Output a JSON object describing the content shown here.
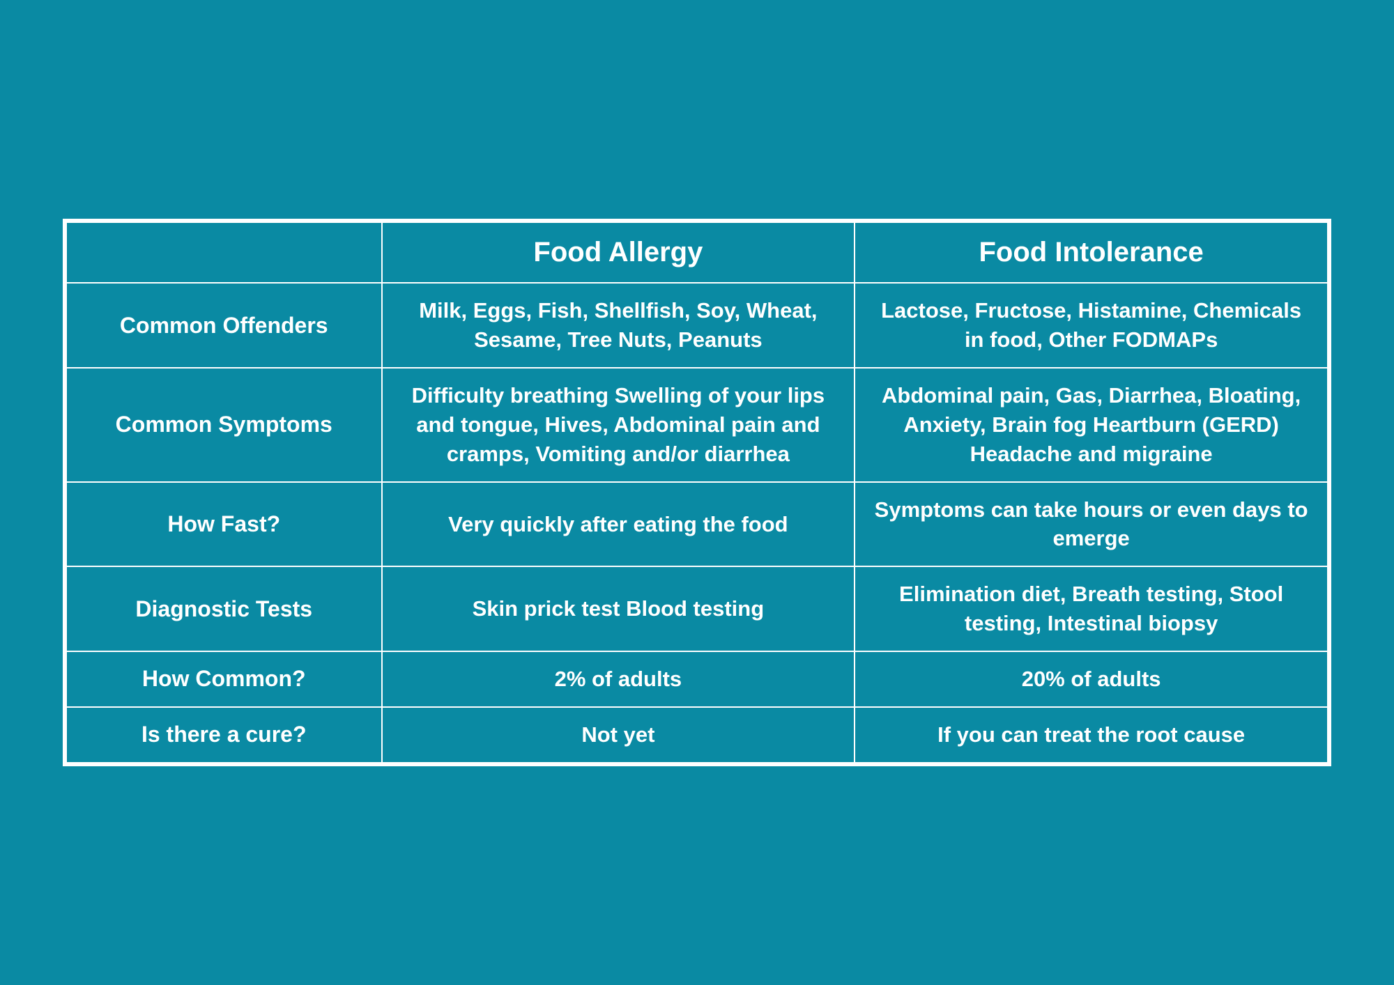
{
  "table": {
    "type": "table",
    "background_color": "#0a8aa3",
    "border_color": "#ffffff",
    "text_color": "#ffffff",
    "header_fontsize": 40,
    "label_fontsize": 32,
    "cell_fontsize": 31,
    "columns": [
      "",
      "Food Allergy",
      "Food Intolerance"
    ],
    "rows": [
      {
        "label": "Common Offenders",
        "allergy": "Milk, Eggs, Fish, Shellfish, Soy, Wheat, Sesame, Tree Nuts, Peanuts",
        "intolerance": "Lactose, Fructose, Histamine, Chemicals in food, Other FODMAPs"
      },
      {
        "label": "Common Symptoms",
        "allergy": "Difficulty breathing Swelling of your lips and tongue, Hives, Abdominal pain and cramps, Vomiting and/or diarrhea",
        "intolerance": "Abdominal pain, Gas, Diarrhea, Bloating, Anxiety, Brain fog Heartburn (GERD) Headache and migraine"
      },
      {
        "label": "How Fast?",
        "allergy": "Very quickly after eating the food",
        "intolerance": "Symptoms can take hours or even days to emerge"
      },
      {
        "label": "Diagnostic Tests",
        "allergy": "Skin prick test Blood testing",
        "intolerance": "Elimination diet, Breath testing, Stool testing, Intestinal biopsy"
      },
      {
        "label": "How Common?",
        "allergy": "2% of adults",
        "intolerance": "20% of adults"
      },
      {
        "label": "Is there a cure?",
        "allergy": "Not yet",
        "intolerance": "If you can treat the root cause"
      }
    ]
  }
}
